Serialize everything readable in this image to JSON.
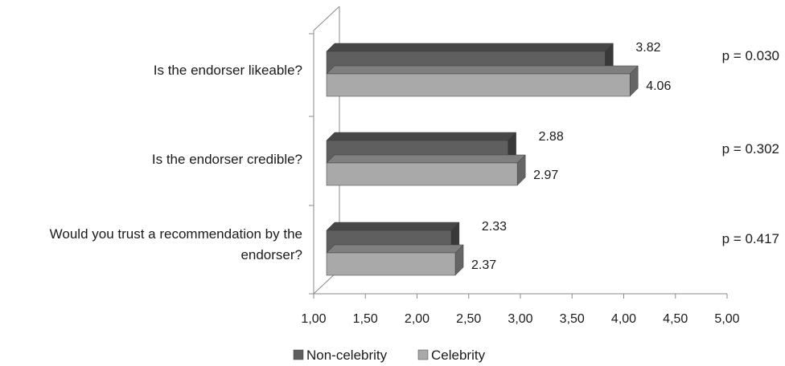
{
  "chart_data": {
    "type": "bar",
    "orientation": "horizontal",
    "categories": [
      [
        "Is the endorser likeable?"
      ],
      [
        "Is the endorser credible?"
      ],
      [
        "Would you trust a recommendation by the",
        "endorser?"
      ]
    ],
    "series": [
      {
        "name": "Non-celebrity",
        "values": [
          3.82,
          2.88,
          2.33
        ],
        "labels": [
          "3.82",
          "2.88",
          "2.33"
        ],
        "color": "#5f5f5f"
      },
      {
        "name": "Celebrity",
        "values": [
          4.06,
          2.97,
          2.37
        ],
        "labels": [
          "4.06",
          "2.97",
          "2.37"
        ],
        "color": "#a9a9a9"
      }
    ],
    "annotations": [
      "p = 0.030",
      "p = 0.302",
      "p = 0.417"
    ],
    "xlim": [
      1.0,
      5.0
    ],
    "xticks": [
      "1,00",
      "1,50",
      "2,00",
      "2,50",
      "3,00",
      "3,50",
      "4,00",
      "4,50",
      "5,00"
    ],
    "legend_position": "bottom",
    "grid": false,
    "style": "3d"
  }
}
